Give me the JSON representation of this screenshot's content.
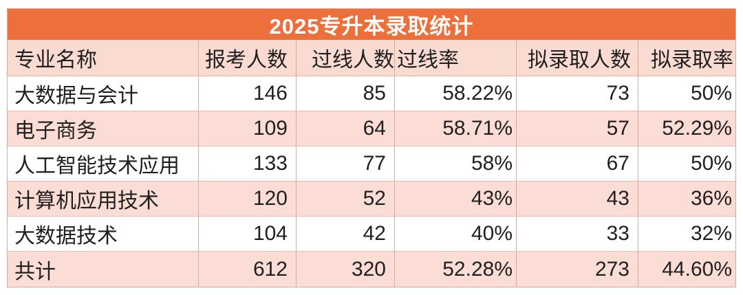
{
  "title": "2025专升本录取统计",
  "colors": {
    "accent_orange": "#ed6f3c",
    "header_pink": "#fadbd2",
    "stripe_pink": "#fbddd6",
    "row_white": "#ffffff",
    "border": "#e4a894",
    "title_text": "#ffffff",
    "body_text": "#1f1f1f"
  },
  "table": {
    "columns": [
      "专业名称",
      "报考人数",
      "过线人数",
      "过线率",
      "拟录取人数",
      "拟录取率"
    ],
    "rows": [
      {
        "major": "大数据与会计",
        "applicants": "146",
        "passed": "85",
        "pass_rate": "58.22%",
        "admitted": "73",
        "admit_rate": "50%"
      },
      {
        "major": "电子商务",
        "applicants": "109",
        "passed": "64",
        "pass_rate": "58.71%",
        "admitted": "57",
        "admit_rate": "52.29%"
      },
      {
        "major": "人工智能技术应用",
        "applicants": "133",
        "passed": "77",
        "pass_rate": "58%",
        "admitted": "67",
        "admit_rate": "50%"
      },
      {
        "major": "计算机应用技术",
        "applicants": "120",
        "passed": "52",
        "pass_rate": "43%",
        "admitted": "43",
        "admit_rate": "36%"
      },
      {
        "major": "大数据技术",
        "applicants": "104",
        "passed": "42",
        "pass_rate": "40%",
        "admitted": "33",
        "admit_rate": "32%"
      },
      {
        "major": "共计",
        "applicants": "612",
        "passed": "320",
        "pass_rate": "52.28%",
        "admitted": "273",
        "admit_rate": "44.60%"
      }
    ]
  },
  "chart_data": {
    "type": "table",
    "title": "2025专升本录取统计",
    "columns": [
      "专业名称",
      "报考人数",
      "过线人数",
      "过线率",
      "拟录取人数",
      "拟录取率"
    ],
    "rows": [
      [
        "大数据与会计",
        146,
        85,
        "58.22%",
        73,
        "50%"
      ],
      [
        "电子商务",
        109,
        64,
        "58.71%",
        57,
        "52.29%"
      ],
      [
        "人工智能技术应用",
        133,
        77,
        "58%",
        67,
        "50%"
      ],
      [
        "计算机应用技术",
        120,
        52,
        "43%",
        43,
        "36%"
      ],
      [
        "大数据技术",
        104,
        42,
        "40%",
        33,
        "32%"
      ],
      [
        "共计",
        612,
        320,
        "52.28%",
        273,
        "44.60%"
      ]
    ]
  }
}
